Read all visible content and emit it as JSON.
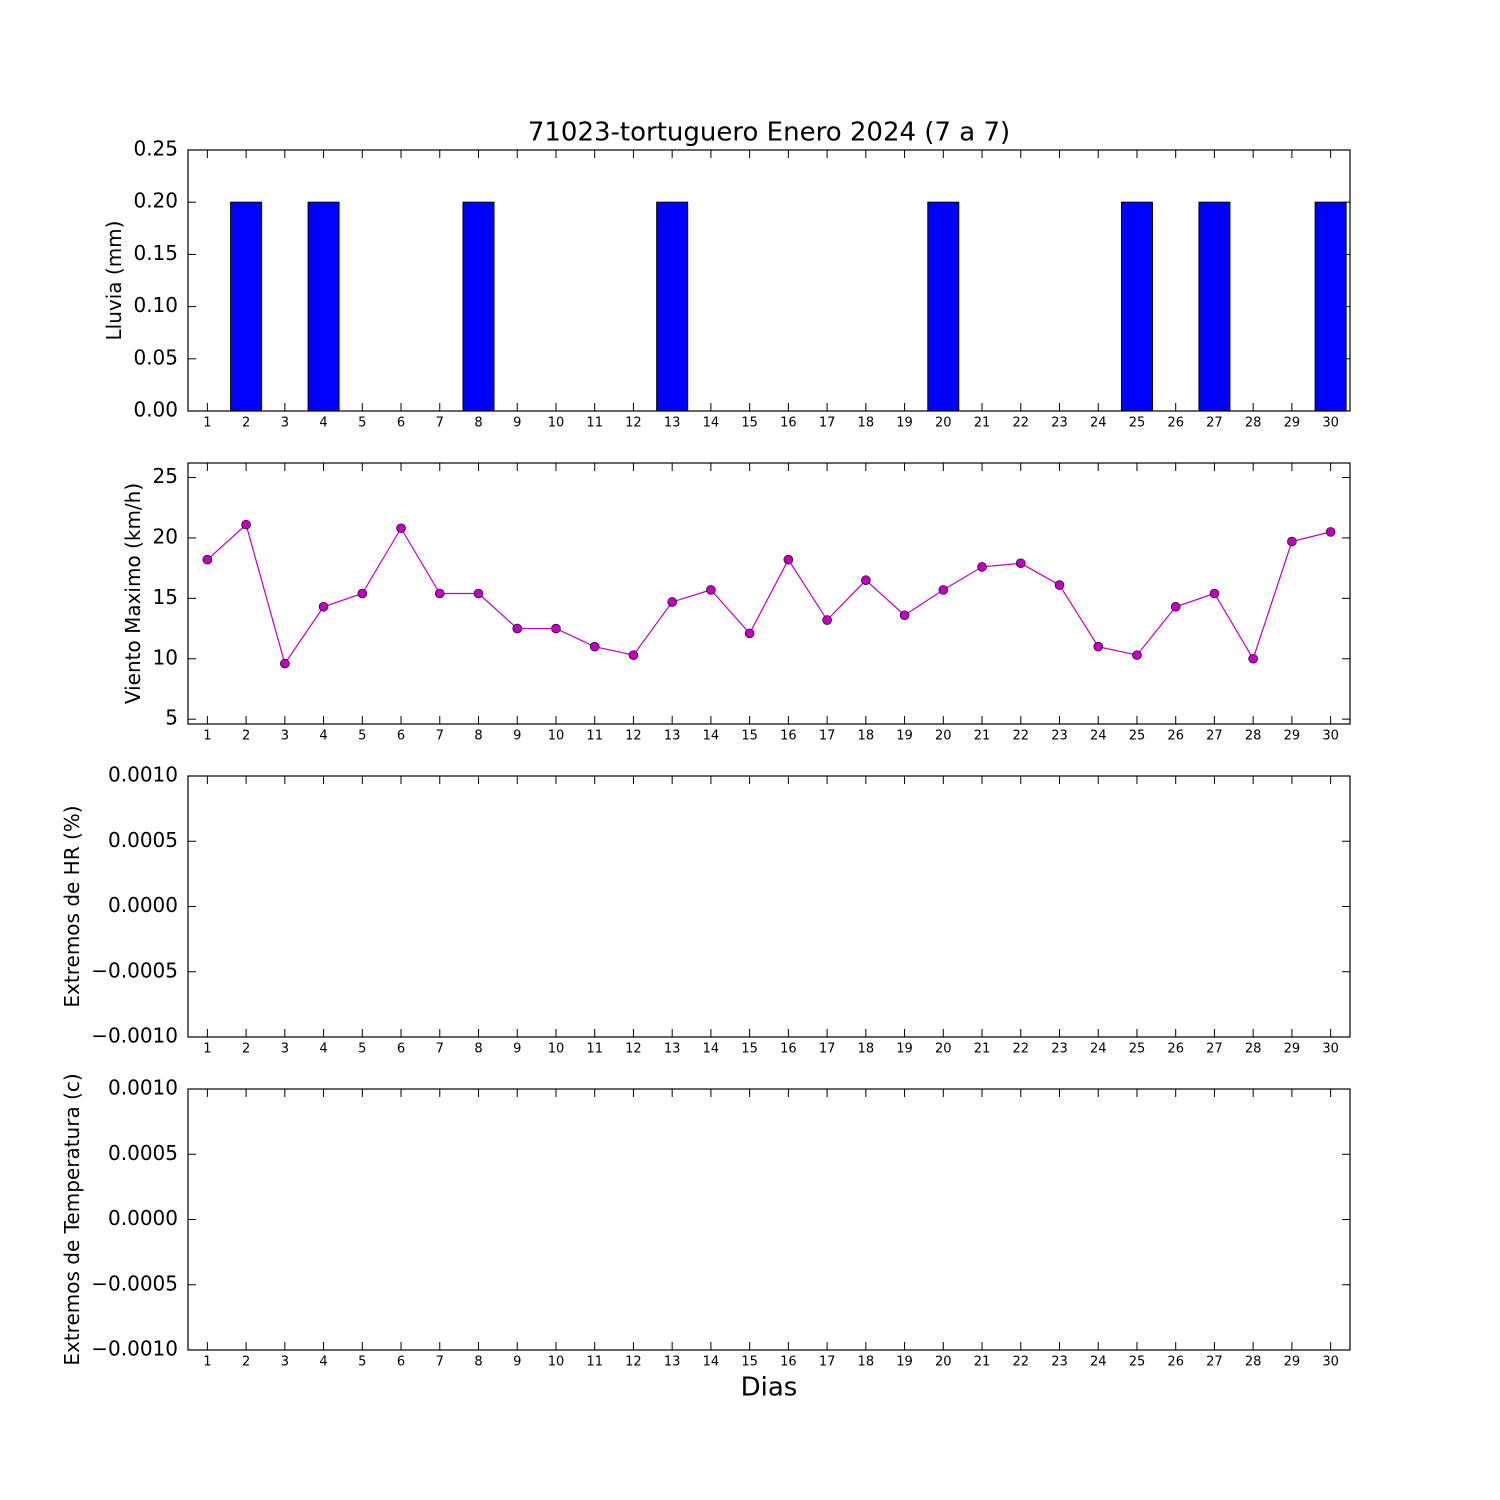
{
  "chart_data": [
    {
      "type": "bar",
      "title": "71023-tortuguero Enero 2024  (7 a 7)",
      "ylabel": "Lluvia (mm)",
      "categories": [
        "1",
        "2",
        "3",
        "4",
        "5",
        "6",
        "7",
        "8",
        "9",
        "10",
        "11",
        "12",
        "13",
        "14",
        "15",
        "16",
        "17",
        "18",
        "19",
        "20",
        "21",
        "22",
        "23",
        "24",
        "25",
        "26",
        "27",
        "28",
        "29",
        "30"
      ],
      "values": [
        0,
        0.2,
        0,
        0.2,
        0,
        0,
        0,
        0.2,
        0,
        0,
        0,
        0,
        0.2,
        0,
        0,
        0,
        0,
        0,
        0,
        0.2,
        0,
        0,
        0,
        0,
        0.2,
        0,
        0.2,
        0,
        0,
        0.2
      ],
      "color": "#0000ff",
      "ylim": [
        0,
        0.25
      ],
      "yticks": [
        {
          "value": 0,
          "label": "0.00"
        },
        {
          "value": 0.05,
          "label": "0.05"
        },
        {
          "value": 0.1,
          "label": "0.10"
        },
        {
          "value": 0.15,
          "label": "0.15"
        },
        {
          "value": 0.2,
          "label": "0.20"
        },
        {
          "value": 0.25,
          "label": "0.25"
        }
      ]
    },
    {
      "type": "line",
      "ylabel": "Viento Maximo (km/h)",
      "categories": [
        "1",
        "2",
        "3",
        "4",
        "5",
        "6",
        "7",
        "8",
        "9",
        "10",
        "11",
        "12",
        "13",
        "14",
        "15",
        "16",
        "17",
        "18",
        "19",
        "20",
        "21",
        "22",
        "23",
        "24",
        "25",
        "26",
        "27",
        "28",
        "29",
        "30"
      ],
      "values": [
        18.2,
        21.1,
        9.6,
        14.3,
        15.4,
        20.8,
        15.4,
        15.4,
        12.5,
        12.5,
        11.0,
        10.3,
        14.7,
        15.7,
        12.1,
        18.2,
        13.2,
        16.5,
        13.6,
        15.7,
        17.6,
        17.9,
        16.1,
        11.0,
        10.3,
        14.3,
        15.4,
        10.0,
        19.7,
        20.5
      ],
      "color": "#bf00bf",
      "ylim": [
        4.6,
        26.2
      ],
      "yticks": [
        5,
        10,
        15,
        20,
        25
      ]
    },
    {
      "type": "line",
      "ylabel": "Extremos de HR (%)",
      "categories": [
        "1",
        "2",
        "3",
        "4",
        "5",
        "6",
        "7",
        "8",
        "9",
        "10",
        "11",
        "12",
        "13",
        "14",
        "15",
        "16",
        "17",
        "18",
        "19",
        "20",
        "21",
        "22",
        "23",
        "24",
        "25",
        "26",
        "27",
        "28",
        "29",
        "30"
      ],
      "ylim": [
        -0.001,
        0.001
      ],
      "yticks": [
        {
          "value": -0.001,
          "label": "−0.0010"
        },
        {
          "value": -0.0005,
          "label": "−0.0005"
        },
        {
          "value": 0,
          "label": "0.0000"
        },
        {
          "value": 0.0005,
          "label": "0.0005"
        },
        {
          "value": 0.001,
          "label": "0.0010"
        }
      ]
    },
    {
      "type": "line",
      "ylabel": "Extremos de Temperatura (c)",
      "xlabel": "Dias",
      "categories": [
        "1",
        "2",
        "3",
        "4",
        "5",
        "6",
        "7",
        "8",
        "9",
        "10",
        "11",
        "12",
        "13",
        "14",
        "15",
        "16",
        "17",
        "18",
        "19",
        "20",
        "21",
        "22",
        "23",
        "24",
        "25",
        "26",
        "27",
        "28",
        "29",
        "30"
      ],
      "ylim": [
        -0.001,
        0.001
      ],
      "yticks": [
        {
          "value": -0.001,
          "label": "−0.0010"
        },
        {
          "value": -0.0005,
          "label": "−0.0005"
        },
        {
          "value": 0,
          "label": "0.0000"
        },
        {
          "value": 0.0005,
          "label": "0.0005"
        },
        {
          "value": 0.001,
          "label": "0.0010"
        }
      ]
    }
  ]
}
